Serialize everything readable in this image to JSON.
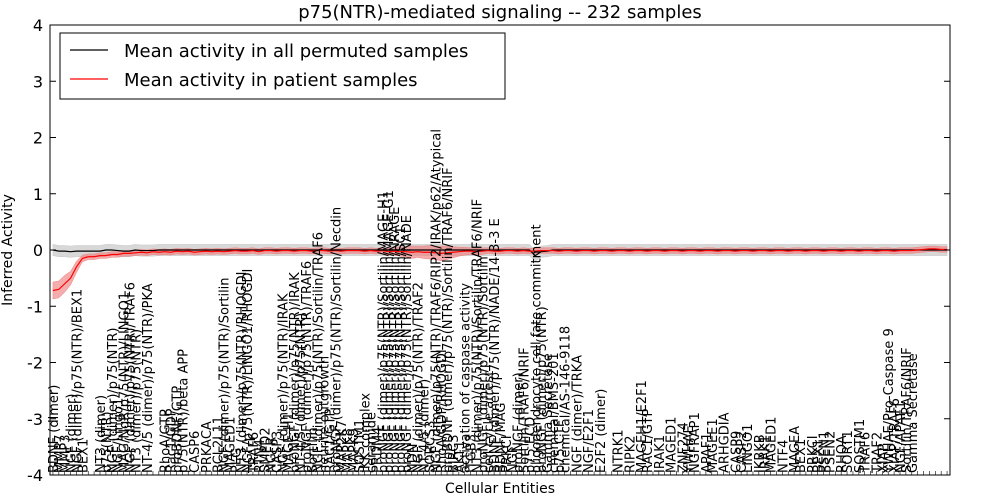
{
  "chart_data": {
    "type": "line",
    "title": "p75(NTR)-mediated signaling -- 232 samples",
    "xlabel": "Cellular Entities",
    "ylabel": "Inferred Activity",
    "ylim": [
      -4,
      4
    ],
    "yticks": [
      -4,
      -3,
      -2,
      -1,
      0,
      1,
      2,
      3,
      4
    ],
    "grid": false,
    "legend_position": "top-left",
    "n_points": 153,
    "series": [
      {
        "name": "Mean activity in all permuted samples",
        "color": "#000000",
        "band_color": "#c8c8c8",
        "band_halfwidth": 0.1,
        "values": [
          0,
          -0.02,
          -0.02,
          -0.03,
          -0.02,
          -0.02,
          -0.02,
          -0.02,
          -0.02,
          0,
          0,
          -0.01,
          -0.02,
          -0.02,
          0,
          -0.01,
          -0.01,
          -0.01,
          0,
          0,
          0,
          0,
          0,
          0,
          0,
          0,
          0,
          0,
          0,
          0,
          0,
          0,
          0,
          0,
          0,
          0,
          0,
          0,
          0,
          0,
          0,
          0,
          0,
          0,
          0,
          0,
          0,
          0,
          0,
          0,
          0,
          0,
          0,
          0,
          0,
          0,
          0,
          0,
          0,
          0,
          0,
          0,
          0,
          0,
          0,
          0,
          0,
          0,
          0,
          0,
          0,
          0,
          0,
          0,
          0,
          0,
          0,
          0,
          0,
          0,
          0,
          0,
          -0.1,
          -0.03,
          -0.02,
          0,
          0,
          0,
          0,
          0,
          0,
          0,
          0,
          0,
          0,
          0,
          0,
          0,
          0,
          0,
          0,
          0,
          0,
          0,
          0,
          0,
          0,
          0,
          0,
          0,
          0,
          0,
          0,
          0,
          0,
          0,
          0,
          0,
          0,
          0,
          0,
          0,
          0,
          0,
          0,
          0,
          0,
          0,
          0,
          0,
          0,
          0,
          0,
          0,
          0,
          0,
          0,
          0,
          0,
          0,
          0,
          0,
          0,
          0,
          0,
          0,
          0,
          0,
          0,
          0,
          0,
          0,
          0
        ]
      },
      {
        "name": "Mean activity in patient samples",
        "color": "#ff0000",
        "band_color": "#f08080",
        "values": [
          -0.72,
          -0.7,
          -0.6,
          -0.5,
          -0.3,
          -0.15,
          -0.12,
          -0.12,
          -0.1,
          -0.1,
          -0.08,
          -0.08,
          -0.06,
          -0.06,
          -0.05,
          -0.04,
          -0.05,
          -0.03,
          -0.04,
          -0.03,
          -0.04,
          -0.02,
          -0.03,
          -0.02,
          -0.04,
          -0.03,
          -0.02,
          -0.03,
          -0.02,
          -0.03,
          -0.02,
          -0.01,
          -0.02,
          -0.02,
          -0.01,
          -0.03,
          -0.01,
          -0.01,
          -0.02,
          -0.01,
          -0.01,
          -0.02,
          -0.01,
          -0.01,
          -0.02,
          -0.01,
          -0.01,
          -0.02,
          -0.01,
          -0.02,
          -0.01,
          -0.01,
          -0.01,
          -0.02,
          -0.01,
          -0.02,
          -0.01,
          -0.03,
          -0.02,
          -0.03,
          -0.03,
          -0.04,
          -0.03,
          -0.04,
          -0.04,
          -0.05,
          -0.06,
          -0.05,
          -0.04,
          -0.03,
          -0.02,
          -0.02,
          -0.03,
          -0.02,
          -0.01,
          -0.02,
          -0.02,
          -0.01,
          -0.01,
          -0.02,
          -0.01,
          -0.02,
          -0.02,
          -0.01,
          -0.01,
          -0.01,
          -0.02,
          -0.01,
          -0.01,
          -0.02,
          -0.01,
          -0.01,
          -0.02,
          -0.01,
          -0.01,
          -0.02,
          -0.01,
          -0.01,
          -0.02,
          -0.01,
          -0.01,
          -0.02,
          -0.01,
          -0.01,
          -0.02,
          -0.01,
          -0.01,
          -0.02,
          -0.01,
          -0.01,
          -0.02,
          -0.01,
          -0.01,
          -0.02,
          -0.01,
          -0.01,
          -0.02,
          -0.01,
          -0.01,
          -0.02,
          -0.01,
          -0.01,
          -0.02,
          -0.01,
          -0.01,
          -0.02,
          -0.01,
          -0.01,
          -0.02,
          -0.01,
          -0.01,
          -0.02,
          -0.01,
          -0.01,
          -0.02,
          -0.01,
          -0.01,
          -0.02,
          -0.01,
          -0.01,
          -0.02,
          -0.01,
          -0.01,
          -0.02,
          -0.01,
          -0.01,
          -0.01,
          0,
          0.01,
          0.02,
          0.02,
          0.01,
          0.01
        ],
        "band_halfwidth": [
          0.15,
          0.15,
          0.15,
          0.12,
          0.1,
          0.06,
          0.05,
          0.05,
          0.05,
          0.05,
          0.05,
          0.05,
          0.05,
          0.05,
          0.05,
          0.05,
          0.05,
          0.05,
          0.05,
          0.05,
          0.05,
          0.05,
          0.05,
          0.05,
          0.05,
          0.05,
          0.05,
          0.05,
          0.05,
          0.05,
          0.05,
          0.05,
          0.05,
          0.05,
          0.05,
          0.05,
          0.05,
          0.05,
          0.05,
          0.05,
          0.05,
          0.05,
          0.05,
          0.05,
          0.05,
          0.05,
          0.05,
          0.05,
          0.05,
          0.05,
          0.05,
          0.05,
          0.05,
          0.05,
          0.05,
          0.05,
          0.05,
          0.06,
          0.07,
          0.08,
          0.09,
          0.11,
          0.1,
          0.11,
          0.12,
          0.12,
          0.13,
          0.12,
          0.1,
          0.08,
          0.07,
          0.06,
          0.06,
          0.06,
          0.05,
          0.05,
          0.05,
          0.05,
          0.05,
          0.05,
          0.05,
          0.05,
          0.05,
          0.05,
          0.05,
          0.05,
          0.05,
          0.05,
          0.05,
          0.05,
          0.05,
          0.05,
          0.05,
          0.05,
          0.05,
          0.05,
          0.05,
          0.05,
          0.05,
          0.05,
          0.05,
          0.05,
          0.05,
          0.05,
          0.05,
          0.05,
          0.05,
          0.05,
          0.05,
          0.05,
          0.05,
          0.05,
          0.05,
          0.05,
          0.05,
          0.05,
          0.05,
          0.05,
          0.05,
          0.05,
          0.05,
          0.05,
          0.05,
          0.05,
          0.05,
          0.05,
          0.05,
          0.05,
          0.05,
          0.05,
          0.05,
          0.05,
          0.05,
          0.05,
          0.05,
          0.05,
          0.05,
          0.05,
          0.05,
          0.05,
          0.05,
          0.05,
          0.05,
          0.05,
          0.05,
          0.05,
          0.05,
          0.05,
          0.05,
          0.05,
          0.05,
          0.05,
          0.05
        ]
      }
    ],
    "x_tick_labels": [
      {
        "index": 0,
        "text": "BDNF (dimer)"
      },
      {
        "index": 1,
        "text": "MMP7"
      },
      {
        "index": 2,
        "text": "MMP3"
      },
      {
        "index": 3,
        "text": "NGF (dimer)"
      },
      {
        "index": 4,
        "text": "NGF (dimer)/p75(NTR)/BEX1"
      },
      {
        "index": 5,
        "text": "BEX1"
      },
      {
        "index": 8,
        "text": "NT3 (dimer)"
      },
      {
        "index": 9,
        "text": "p75(NTR)"
      },
      {
        "index": 10,
        "text": "NGF (dimer)/p75(NTR)"
      },
      {
        "index": 11,
        "text": "NGF/Lingo1"
      },
      {
        "index": 12,
        "text": "MAG/NgR/p75(NTR)/LINGO1"
      },
      {
        "index": 13,
        "text": "NGF (dimer)/p75(NTR)/TRAF6"
      },
      {
        "index": 14,
        "text": "NT3 (dimer)/p75(NTR)"
      },
      {
        "index": 16,
        "text": "NT-4/5 (dimer)/p75(NTR)/PKA"
      },
      {
        "index": 19,
        "text": "RhoA/GTP"
      },
      {
        "index": 20,
        "text": "Rac1/GDP"
      },
      {
        "index": 21,
        "text": "proBDNF/GTP"
      },
      {
        "index": 22,
        "text": "p75(NTR)/beta APP"
      },
      {
        "index": 24,
        "text": "CASP6"
      },
      {
        "index": 26,
        "text": "PRKACA"
      },
      {
        "index": 28,
        "text": "BCL2L11"
      },
      {
        "index": 29,
        "text": "NGF (dimer)/p75(NTR)/Sortilin"
      },
      {
        "index": 30,
        "text": "MAGED1"
      },
      {
        "index": 31,
        "text": "PLG"
      },
      {
        "index": 32,
        "text": "NT3 (dimer)/p75(NTR)/RHOGDI"
      },
      {
        "index": 33,
        "text": "NGF/p75(NTR)/LINGO1/RHOGDI"
      },
      {
        "index": 34,
        "text": "TRAF6"
      },
      {
        "index": 35,
        "text": "RTN4"
      },
      {
        "index": 36,
        "text": "SMPD2"
      },
      {
        "index": 37,
        "text": "NGFR"
      },
      {
        "index": 38,
        "text": "CASP3"
      },
      {
        "index": 39,
        "text": "NGF (dimer)/p75(NTR)/IRAK"
      },
      {
        "index": 40,
        "text": "MAGE-H1"
      },
      {
        "index": 41,
        "text": "proNGF (dimer)/p75(NTR)/IRAK"
      },
      {
        "index": 42,
        "text": "NT-4/5 (dimer)/p75(NTR)"
      },
      {
        "index": 43,
        "text": "proNGF (dimer)/p75(NTR)/TRAF6"
      },
      {
        "index": 44,
        "text": "Sortilin"
      },
      {
        "index": 45,
        "text": "NGF (dimer)/p75(NTR)/Sortilin/TRAF6"
      },
      {
        "index": 46,
        "text": "neurite outgrowth"
      },
      {
        "index": 47,
        "text": "RAC1/GTP"
      },
      {
        "index": 48,
        "text": "proNGF (dimer)/p75(NTR)/Sortilin/Necdin"
      },
      {
        "index": 49,
        "text": "MAP2K7"
      },
      {
        "index": 50,
        "text": "MAPK8"
      },
      {
        "index": 51,
        "text": "MAPK9"
      },
      {
        "index": 52,
        "text": "SQSTM1"
      },
      {
        "index": 53,
        "text": "IKK complex"
      },
      {
        "index": 54,
        "text": "ceramide"
      },
      {
        "index": 55,
        "text": "PRDM4"
      },
      {
        "index": 56,
        "text": "proNGF (dimer)/p75(NTR)/Sortilin/MAGE-H1"
      },
      {
        "index": 57,
        "text": "proNGF (dimer)/p75(NTR)/Sortilin/MAGE-G1"
      },
      {
        "index": 58,
        "text": "proNGF (dimer)/p75(NTR)/Sortilin/NRAGE"
      },
      {
        "index": 59,
        "text": "proNGF (dimer)/p75(NTR)/Sortilin/SC1"
      },
      {
        "index": 60,
        "text": "proNGF (dimer)/p75(NTR)/Sortilin/NADE"
      },
      {
        "index": 61,
        "text": "NDN"
      },
      {
        "index": 62,
        "text": "NGF (dimer)/p75(NTR)/TRAF2"
      },
      {
        "index": 63,
        "text": "NT-4/5 (dimer)"
      },
      {
        "index": 64,
        "text": "SORCS3"
      },
      {
        "index": 65,
        "text": "NGF (dimer)/p75(NTR)/TRAF6/RIP2/IRAK/p62/Atypical"
      },
      {
        "index": 66,
        "text": "RhoA/GDP/RHOGDI"
      },
      {
        "index": 67,
        "text": "proBDNF (dimer)/p75(NTR)/Sortilin/TRAF6/NRIF"
      },
      {
        "index": 68,
        "text": "BIRC3"
      },
      {
        "index": 69,
        "text": "AKT1"
      },
      {
        "index": 70,
        "text": "activation of caspase activity"
      },
      {
        "index": 71,
        "text": "ITGB3"
      },
      {
        "index": 72,
        "text": "NT3 (dimer)/p75(NTR)/Sortilin/TRAF6/NRIF"
      },
      {
        "index": 73,
        "text": "proNGF (dimer)/p75(NTR)/Sortilin"
      },
      {
        "index": 74,
        "text": "cell cycle arrest"
      },
      {
        "index": 75,
        "text": "BDNF (dimer)/p75(NTR)/NADE/14-3-3 E"
      },
      {
        "index": 76,
        "text": "BDNF/MAG"
      },
      {
        "index": 77,
        "text": "PRKCI"
      },
      {
        "index": 78,
        "text": "NGF"
      },
      {
        "index": 79,
        "text": "proNGF (dimer)"
      },
      {
        "index": 80,
        "text": "Sortilin/TRAF6/NRIF"
      },
      {
        "index": 81,
        "text": "p75 ECD"
      },
      {
        "index": 82,
        "text": "oligodendrocyte cell fate commitment"
      },
      {
        "index": 83,
        "text": "proNGF (dimer)/p75(NTR)"
      },
      {
        "index": 84,
        "text": "Gamma Secretase"
      },
      {
        "index": 85,
        "text": "chemical/BMS-201"
      },
      {
        "index": 86,
        "text": "p75 CTF"
      },
      {
        "index": 87,
        "text": "chemical/AS-146-9118"
      },
      {
        "index": 89,
        "text": "NGF (dimer)/TRKA"
      },
      {
        "index": 91,
        "text": "NGF/E2F1"
      },
      {
        "index": 93,
        "text": "E2F2 (dimer)"
      },
      {
        "index": 96,
        "text": "NTRK1"
      },
      {
        "index": 98,
        "text": "RIPK2"
      },
      {
        "index": 100,
        "text": "MAGEH1/E2F1"
      },
      {
        "index": 101,
        "text": "RAC1/GTP"
      },
      {
        "index": 103,
        "text": "IRAK1"
      },
      {
        "index": 105,
        "text": "MAGED1"
      },
      {
        "index": 107,
        "text": "ZNF274"
      },
      {
        "index": 108,
        "text": "YWHAE"
      },
      {
        "index": 109,
        "text": "NGFRAP1"
      },
      {
        "index": 111,
        "text": "APAF1"
      },
      {
        "index": 112,
        "text": "MAGEE1"
      },
      {
        "index": 114,
        "text": "ARHGDIA"
      },
      {
        "index": 116,
        "text": "CASP9"
      },
      {
        "index": 117,
        "text": "CASP2"
      },
      {
        "index": 118,
        "text": "LINGO1"
      },
      {
        "index": 120,
        "text": "IKBKB"
      },
      {
        "index": 121,
        "text": "IRAK1"
      },
      {
        "index": 122,
        "text": "MAGED1"
      },
      {
        "index": 124,
        "text": "NTF4"
      },
      {
        "index": 126,
        "text": "MAGEA"
      },
      {
        "index": 127,
        "text": "BEX1"
      },
      {
        "index": 129,
        "text": "PRKCI"
      },
      {
        "index": 130,
        "text": "BEX1"
      },
      {
        "index": 131,
        "text": "PSEN1"
      },
      {
        "index": 132,
        "text": "PSEN2"
      },
      {
        "index": 134,
        "text": "RHOA"
      },
      {
        "index": 135,
        "text": "SORT1"
      },
      {
        "index": 137,
        "text": "SQSTM1"
      },
      {
        "index": 138,
        "text": "TRAF6"
      },
      {
        "index": 140,
        "text": "TRAF2"
      },
      {
        "index": 141,
        "text": "XIAP"
      },
      {
        "index": 142,
        "text": "YWHAE/Pro-Caspase 9"
      },
      {
        "index": 143,
        "text": "XIAP/TRAF6"
      },
      {
        "index": 144,
        "text": "NGF/APAF1"
      },
      {
        "index": 145,
        "text": "Sortilin/TRAF6/NRIF"
      },
      {
        "index": 146,
        "text": "Gamma Secretase"
      }
    ]
  }
}
